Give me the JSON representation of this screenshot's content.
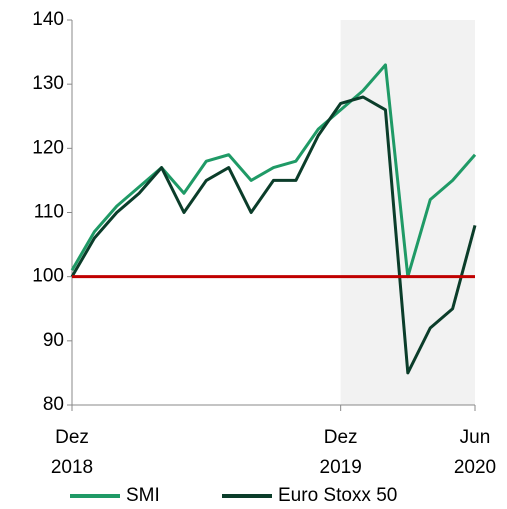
{
  "chart_data": {
    "type": "line",
    "x": [
      "2018-12",
      "2019-01",
      "2019-02",
      "2019-03",
      "2019-04",
      "2019-05",
      "2019-06",
      "2019-07",
      "2019-08",
      "2019-09",
      "2019-10",
      "2019-11",
      "2019-12",
      "2020-01",
      "2020-02",
      "2020-03",
      "2020-04",
      "2020-05",
      "2020-06"
    ],
    "series": [
      {
        "name": "SMI",
        "color": "#1f9a66",
        "values": [
          101,
          107,
          111,
          114,
          117,
          113,
          118,
          119,
          115,
          117,
          118,
          123,
          126,
          129,
          133,
          100,
          112,
          115,
          119
        ]
      },
      {
        "name": "Euro Stoxx 50",
        "color": "#0b3d2a",
        "values": [
          100,
          106,
          110,
          113,
          117,
          110,
          115,
          117,
          110,
          115,
          115,
          122,
          127,
          128,
          126,
          85,
          92,
          95,
          108
        ]
      }
    ],
    "xlim": [
      "2018-12",
      "2020-06"
    ],
    "xticks": [
      {
        "value": "2018-12",
        "label": "Dez 2018"
      },
      {
        "value": "2019-12",
        "label": "Dez 2019"
      },
      {
        "value": "2020-06",
        "label": "Jun 2020"
      }
    ],
    "ylim": [
      80,
      140
    ],
    "yticks": [
      80,
      90,
      100,
      110,
      120,
      130,
      140
    ],
    "highlight": {
      "from": "2019-12",
      "to": "2020-06",
      "color": "#f2f2f2"
    },
    "reference_line": {
      "value": 100,
      "color": "#c00000"
    },
    "legend": "bottom"
  }
}
